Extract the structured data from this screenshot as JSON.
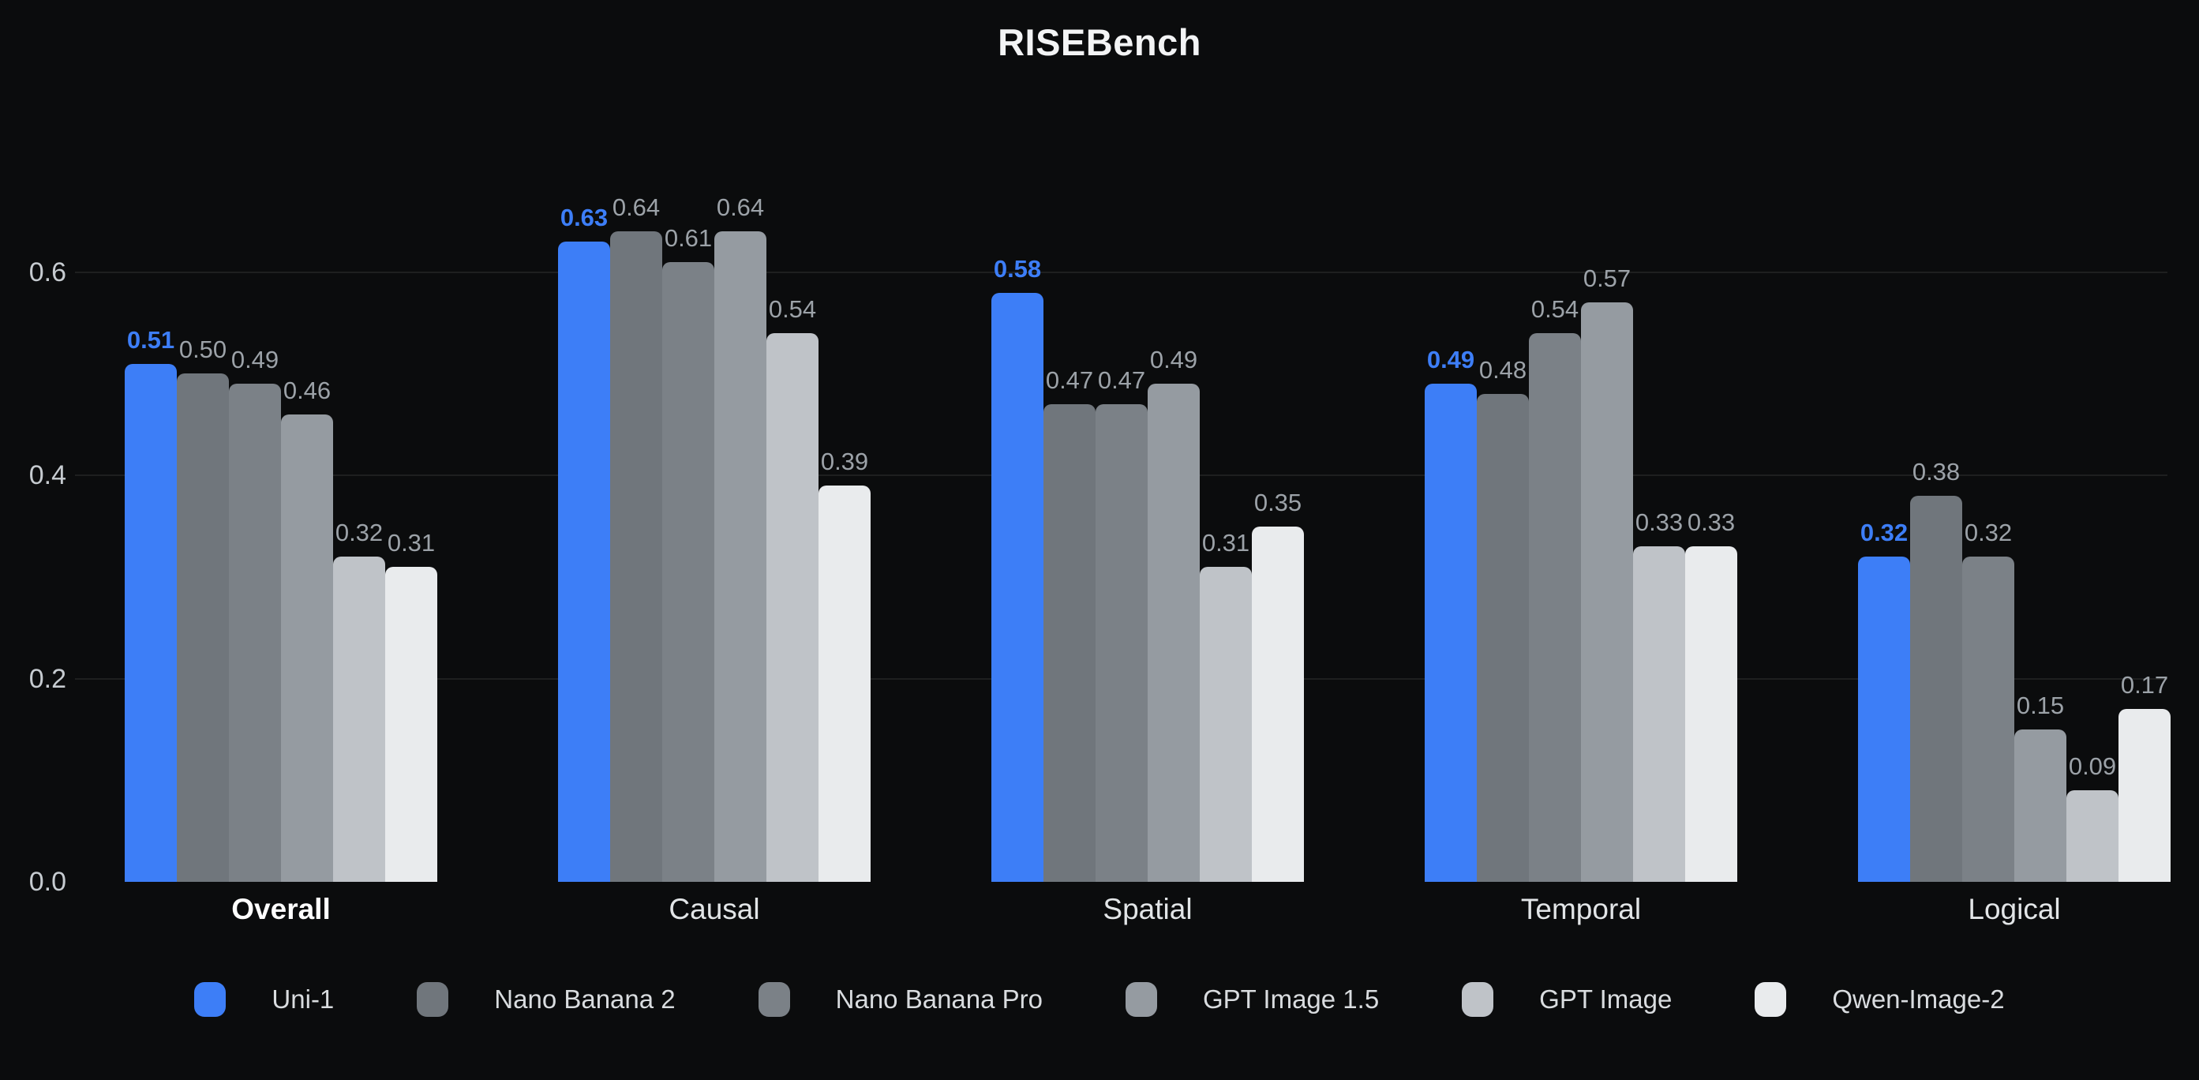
{
  "title": "RISEBench",
  "colors": {
    "background": "#0b0c0d",
    "accent_blue": "#3d7ef7",
    "grid": "rgba(255,255,255,0.08)",
    "axis_label": "#c6cbd0",
    "value_label": "#9ca2a8",
    "category_label": "#e2e5e7",
    "title": "#f3f4f5"
  },
  "chart_data": {
    "type": "bar",
    "title": "RISEBench",
    "categories": [
      "Overall",
      "Causal",
      "Spatial",
      "Temporal",
      "Logical"
    ],
    "bold_category_index": 0,
    "series": [
      {
        "name": "Uni-1",
        "color": "#3d7ef7",
        "highlight": true,
        "values": [
          0.51,
          0.63,
          0.58,
          0.49,
          0.32
        ]
      },
      {
        "name": "Nano Banana 2",
        "color": "#70767c",
        "highlight": false,
        "values": [
          0.5,
          0.64,
          0.47,
          0.48,
          0.38
        ]
      },
      {
        "name": "Nano Banana Pro",
        "color": "#7b8187",
        "highlight": false,
        "values": [
          0.49,
          0.61,
          0.47,
          0.54,
          0.32
        ]
      },
      {
        "name": "GPT Image 1.5",
        "color": "#959ba1",
        "highlight": false,
        "values": [
          0.46,
          0.64,
          0.49,
          0.57,
          0.15
        ]
      },
      {
        "name": "GPT Image",
        "color": "#bfc3c8",
        "highlight": false,
        "values": [
          0.32,
          0.54,
          0.31,
          0.33,
          0.09
        ]
      },
      {
        "name": "Qwen-Image-2",
        "color": "#e9ebed",
        "highlight": false,
        "values": [
          0.31,
          0.39,
          0.35,
          0.33,
          0.17
        ]
      }
    ],
    "xlabel": "",
    "ylabel": "",
    "yticks": [
      0.0,
      0.2,
      0.4,
      0.6
    ],
    "ylim": [
      0,
      0.7
    ],
    "grid": true,
    "value_labels": true,
    "value_label_format": "2dp",
    "legend_position": "bottom"
  }
}
